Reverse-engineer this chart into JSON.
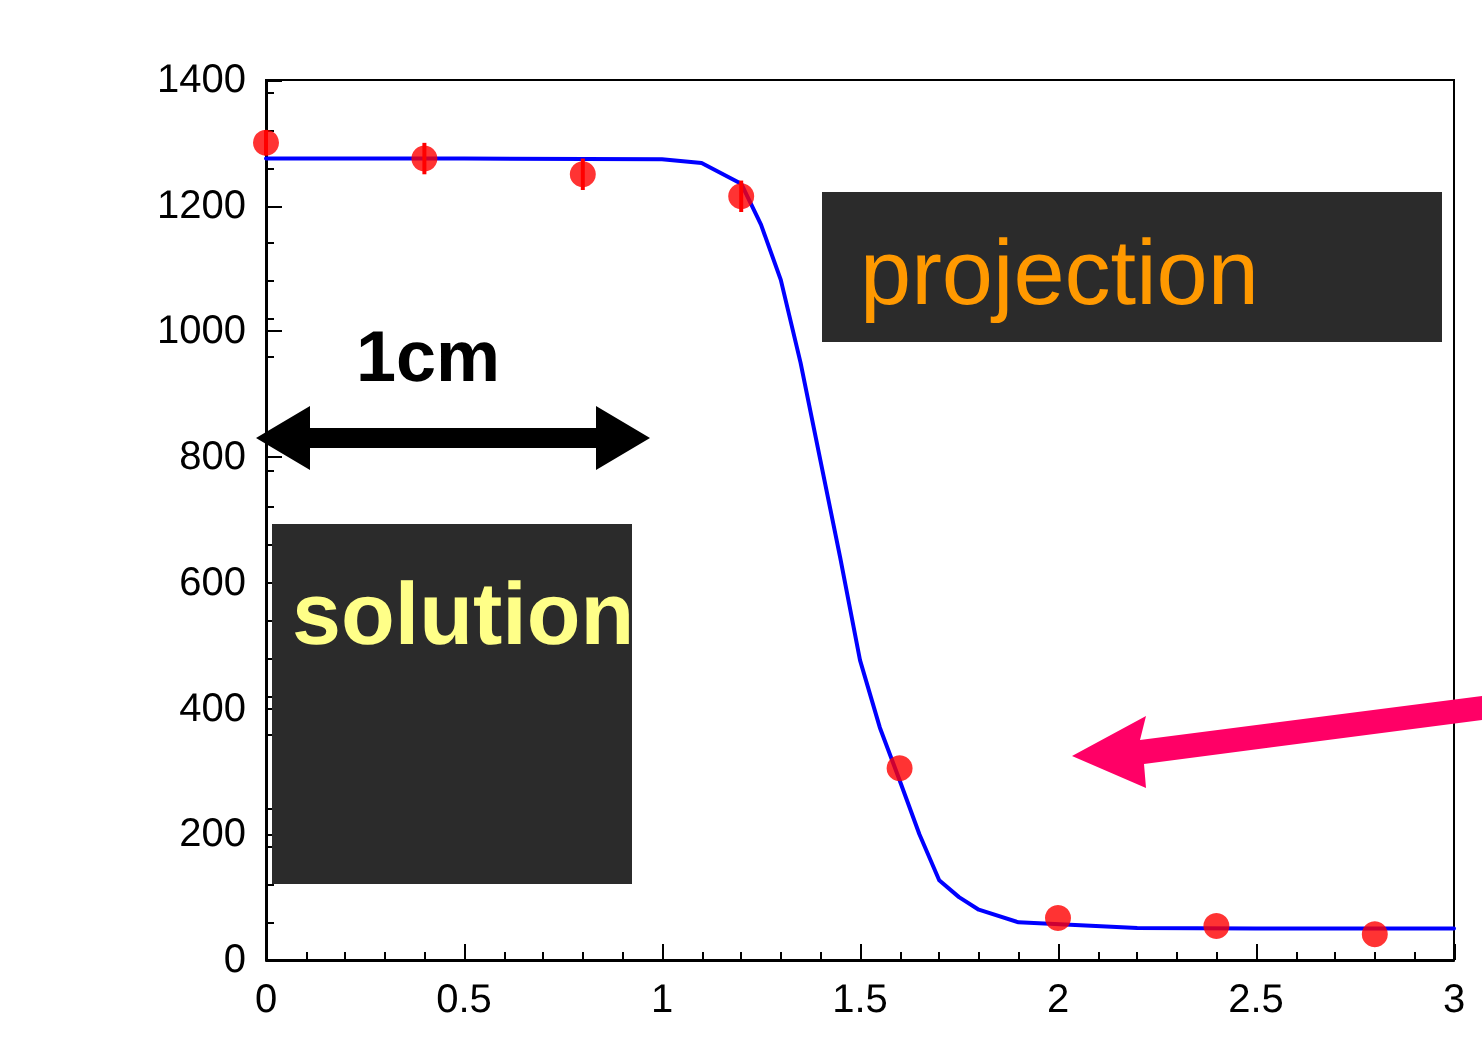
{
  "chart_data": {
    "type": "scatter",
    "xlim": [
      0,
      3
    ],
    "xticks": [
      0,
      0.5,
      1,
      1.5,
      2,
      2.5,
      3
    ],
    "ylim": [
      0,
      1400
    ],
    "yticks": [
      0,
      200,
      400,
      600,
      800,
      1000,
      1200,
      1400
    ],
    "grid": false,
    "series": [
      {
        "type": "line",
        "color": "#0000ff",
        "marker": "none",
        "line_style": "solid",
        "x": [
          0,
          0.5,
          1,
          1.1,
          1.2,
          1.25,
          1.3,
          1.35,
          1.4,
          1.45,
          1.5,
          1.55,
          1.6,
          1.65,
          1.7,
          1.75,
          1.8,
          1.9,
          2.2,
          2.5,
          3
        ],
        "values": [
          1275,
          1275,
          1274,
          1268,
          1235,
          1170,
          1082,
          950,
          795,
          640,
          477,
          370,
          286,
          200,
          127,
          100,
          80,
          60,
          51,
          50,
          50
        ]
      },
      {
        "color": "#ff0000",
        "marker": "circle",
        "x": [
          0,
          0.4,
          0.8,
          1.2,
          1.6,
          2,
          2.4,
          2.8
        ],
        "values": [
          1300,
          1275,
          1250,
          1215,
          305,
          67,
          54,
          41
        ],
        "errors": [
          20,
          25,
          25,
          25,
          null,
          null,
          null,
          null
        ]
      }
    ],
    "annotations": [
      "1cm",
      "solution",
      "projection"
    ]
  }
}
